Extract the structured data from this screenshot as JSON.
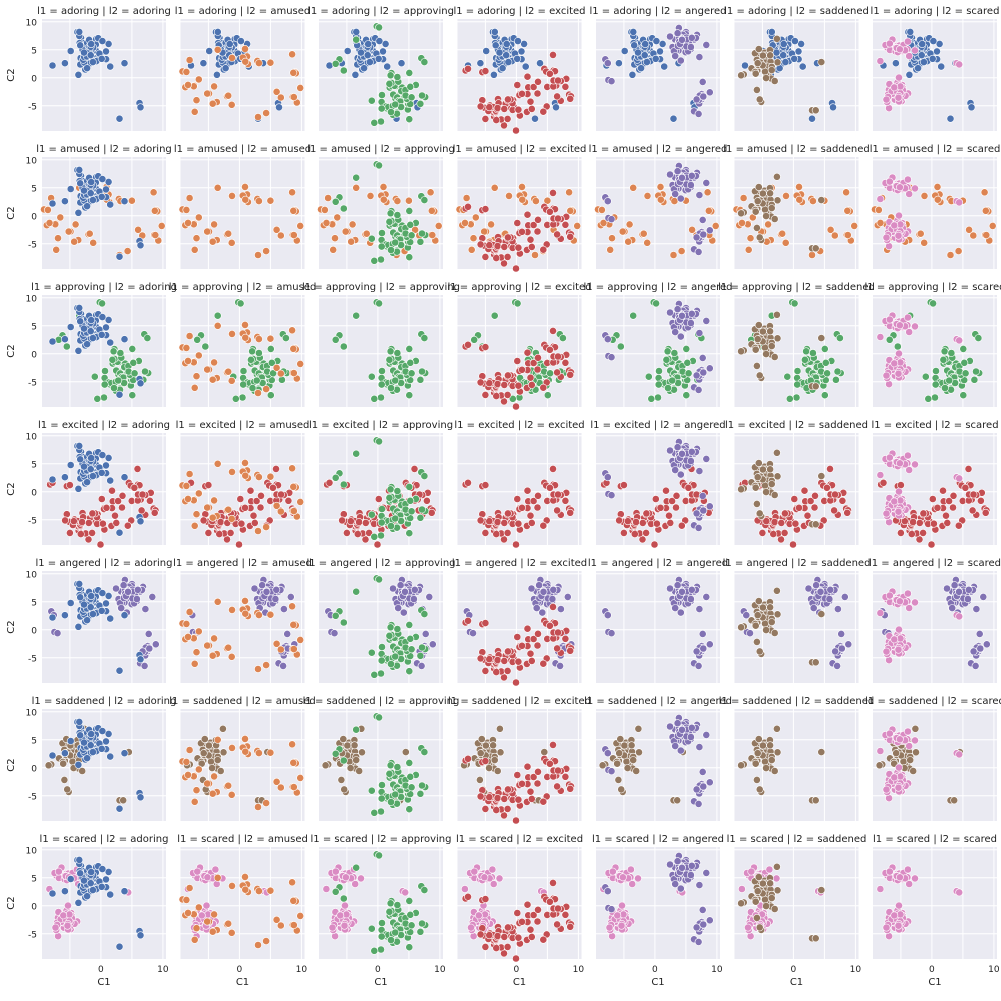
{
  "chart_data": {
    "type": "scatter",
    "layout": "facet-grid",
    "title_template": "l1 = {row} | l2 = {col}",
    "facet_rows": [
      "adoring",
      "amused",
      "approving",
      "excited",
      "angered",
      "saddened",
      "scared"
    ],
    "facet_cols": [
      "adoring",
      "amused",
      "approving",
      "excited",
      "angered",
      "saddened",
      "scared"
    ],
    "xlabel": "C1",
    "ylabel": "C2",
    "xlim": [
      -9.5,
      10.5
    ],
    "ylim": [
      -9.5,
      10.5
    ],
    "xticks": [
      -10,
      -5,
      0,
      5,
      10
    ],
    "xtick_labels": [
      "",
      "",
      "0",
      "",
      "10"
    ],
    "yticks": [
      -10,
      -5,
      0,
      5,
      10
    ],
    "ytick_labels": [
      "",
      "-5",
      "0",
      "5",
      "10"
    ],
    "grid": true,
    "legend": "none",
    "series": [
      {
        "label": "adoring",
        "color": "#4c72b0",
        "clusters": [
          {
            "cx": -1.8,
            "cy": 4.8,
            "sx": 1.3,
            "sy": 1.5,
            "n": 60,
            "seed": 11
          },
          {
            "cx": 5.8,
            "cy": -5.0,
            "sx": 0.3,
            "sy": 0.5,
            "n": 2,
            "seed": 12
          }
        ],
        "points": [
          [
            -7.8,
            2.2
          ],
          [
            -5.8,
            2.6
          ],
          [
            3.8,
            2.6
          ],
          [
            3.0,
            -7.3
          ],
          [
            1.5,
            2.0
          ]
        ]
      },
      {
        "label": "amused",
        "color": "#dd8452",
        "clusters": [
          {
            "cx": -7.5,
            "cy": 0.2,
            "sx": 1.0,
            "sy": 1.6,
            "n": 8,
            "seed": 21
          },
          {
            "cx": -5.0,
            "cy": -3.5,
            "sx": 1.2,
            "sy": 1.4,
            "n": 8,
            "seed": 22
          },
          {
            "cx": 0.5,
            "cy": 3.5,
            "sx": 1.2,
            "sy": 1.5,
            "n": 8,
            "seed": 23
          },
          {
            "cx": 8.5,
            "cy": -3.0,
            "sx": 0.9,
            "sy": 0.9,
            "n": 5,
            "seed": 24
          }
        ],
        "points": [
          [
            -3.5,
            5.0
          ],
          [
            -2.0,
            -3.3
          ],
          [
            -1.8,
            -3.2
          ],
          [
            9.0,
            1.0
          ],
          [
            9.1,
            0.8
          ],
          [
            5.0,
            2.7
          ],
          [
            4.3,
            -6.3
          ],
          [
            3.0,
            -7.0
          ],
          [
            8.5,
            4.2
          ],
          [
            6.0,
            -2.5
          ],
          [
            8.7,
            0.9
          ]
        ]
      },
      {
        "label": "approving",
        "color": "#55a868",
        "clusters": [
          {
            "cx": 3.3,
            "cy": -3.3,
            "sx": 1.5,
            "sy": 2.0,
            "n": 60,
            "seed": 31
          }
        ],
        "points": [
          [
            -0.2,
            9.2
          ],
          [
            0.2,
            9.0
          ],
          [
            -3.5,
            6.8
          ],
          [
            -6.2,
            3.3
          ],
          [
            -6.8,
            2.5
          ],
          [
            -5.5,
            1.3
          ],
          [
            7.0,
            3.5
          ],
          [
            7.5,
            2.8
          ],
          [
            0.5,
            -7.8
          ]
        ]
      },
      {
        "label": "excited",
        "color": "#c44e52",
        "clusters": [
          {
            "cx": -2.8,
            "cy": -5.8,
            "sx": 1.4,
            "sy": 1.2,
            "n": 30,
            "seed": 41
          },
          {
            "cx": 1.0,
            "cy": -3.5,
            "sx": 1.6,
            "sy": 1.8,
            "n": 22,
            "seed": 42
          },
          {
            "cx": 6.0,
            "cy": -1.0,
            "sx": 1.2,
            "sy": 2.2,
            "n": 16,
            "seed": 43
          }
        ],
        "points": [
          [
            -8.2,
            1.3
          ],
          [
            -7.8,
            1.6
          ],
          [
            -5.5,
            1.0
          ],
          [
            -5.0,
            1.2
          ],
          [
            4.5,
            1.6
          ],
          [
            4.8,
            1.1
          ],
          [
            8.5,
            -3.0
          ],
          [
            8.8,
            -3.3
          ],
          [
            -2.0,
            -8.5
          ]
        ]
      },
      {
        "label": "angered",
        "color": "#8172b3",
        "clusters": [
          {
            "cx": 4.5,
            "cy": 6.2,
            "sx": 1.3,
            "sy": 1.3,
            "n": 50,
            "seed": 51
          },
          {
            "cx": 7.8,
            "cy": -3.5,
            "sx": 0.6,
            "sy": 1.5,
            "n": 13,
            "seed": 52
          }
        ],
        "points": [
          [
            -8.0,
            3.3
          ],
          [
            -7.6,
            2.6
          ],
          [
            -7.5,
            -0.4
          ],
          [
            -7.0,
            -0.6
          ]
        ]
      },
      {
        "label": "saddened",
        "color": "#937860",
        "clusters": [
          {
            "cx": -5.0,
            "cy": 2.6,
            "sx": 1.3,
            "sy": 1.9,
            "n": 45,
            "seed": 61
          }
        ],
        "points": [
          [
            -8.0,
            0.6
          ],
          [
            4.5,
            2.8
          ],
          [
            3.0,
            -5.8
          ],
          [
            3.6,
            -5.8
          ],
          [
            -5.2,
            -4.3
          ]
        ]
      },
      {
        "label": "scared",
        "color": "#da8bc3",
        "clusters": [
          {
            "cx": -5.5,
            "cy": 5.5,
            "sx": 1.2,
            "sy": 0.9,
            "n": 22,
            "seed": 71
          },
          {
            "cx": -5.8,
            "cy": -2.8,
            "sx": 1.0,
            "sy": 1.3,
            "n": 42,
            "seed": 72
          }
        ],
        "points": [
          [
            4.0,
            2.6
          ],
          [
            4.4,
            2.4
          ],
          [
            -8.3,
            3.0
          ]
        ]
      }
    ]
  }
}
